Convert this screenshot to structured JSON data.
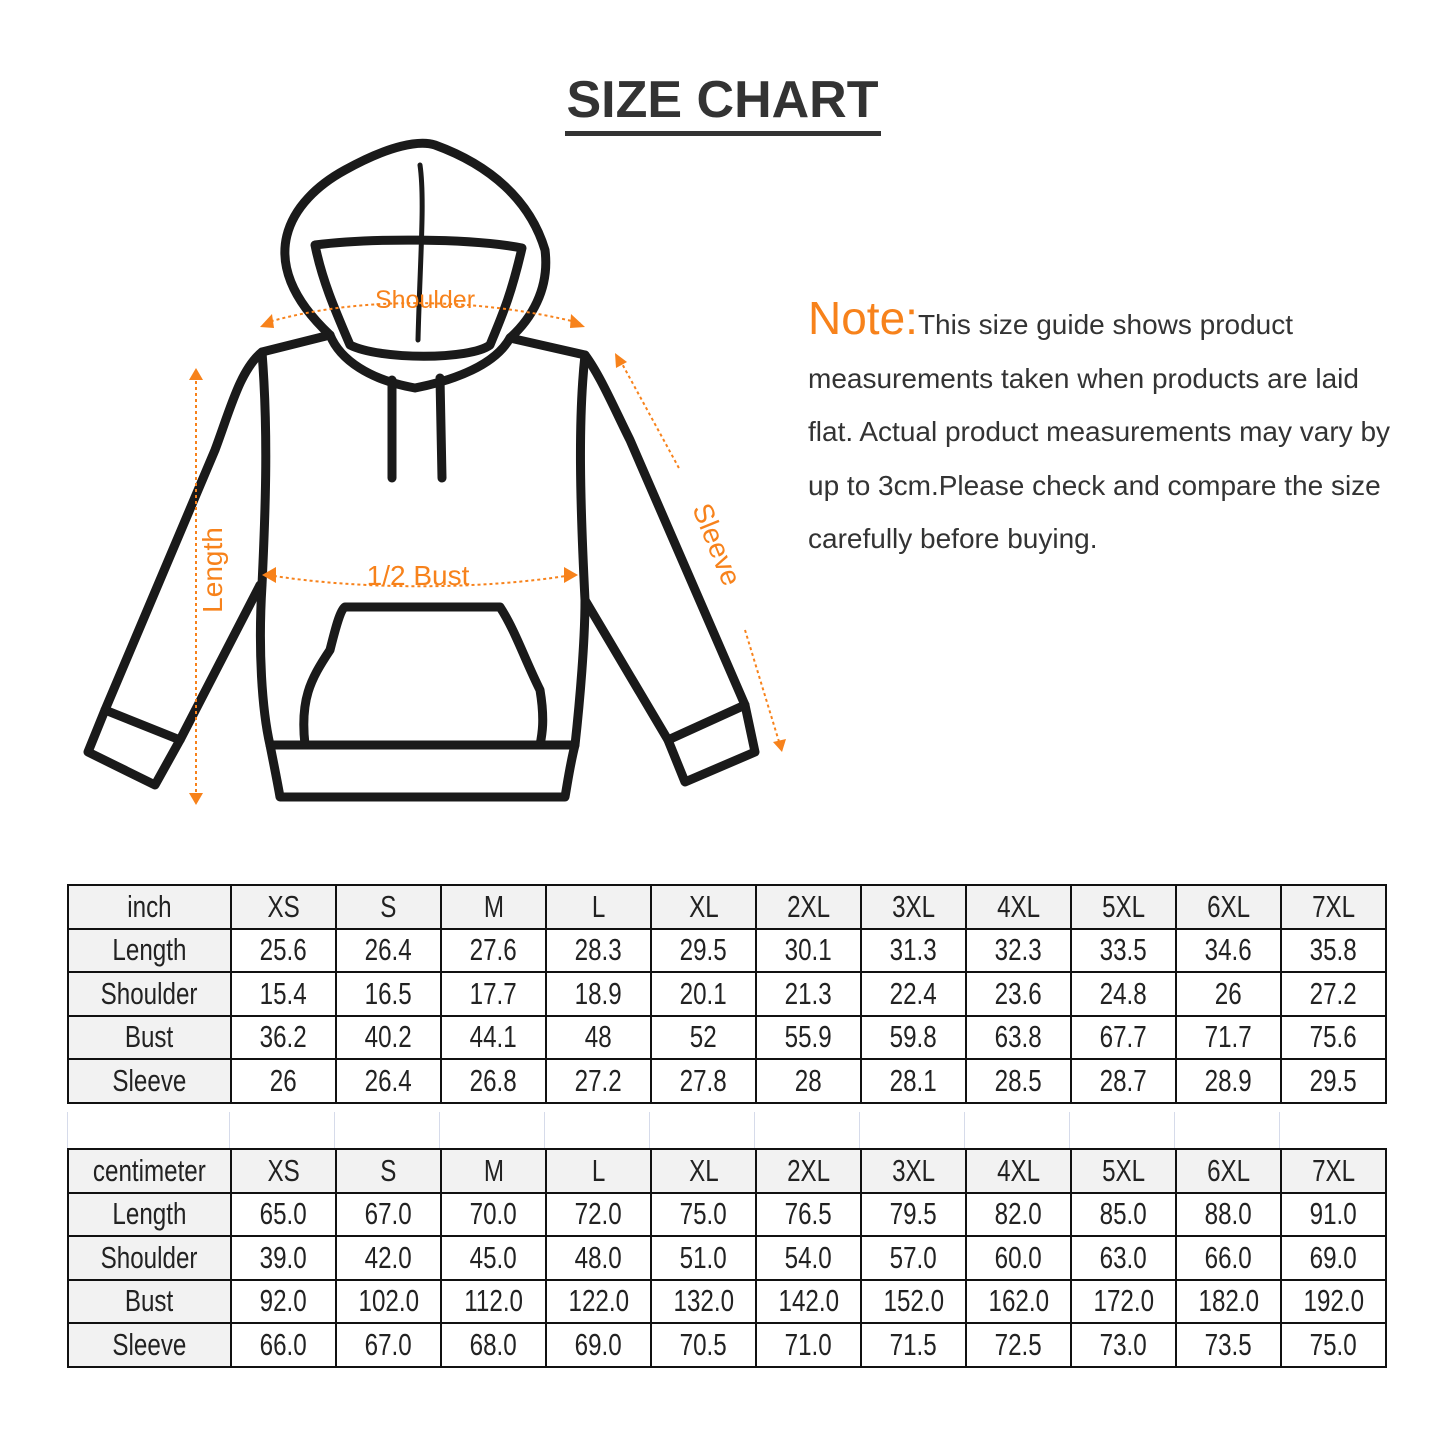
{
  "title": "SIZE CHART",
  "labels": {
    "shoulder": "Shoulder",
    "length": "Length",
    "bust": "1/2 Bust",
    "sleeve": "Sleeve"
  },
  "note": {
    "label": "Note:",
    "text": "This size guide shows product measurements taken when products are laid flat. Actual product measurements may vary by up to 3cm.Please check and compare the size carefully before buying."
  },
  "colors": {
    "accent": "#f7821b",
    "outline": "#1a1a1a",
    "header_bg": "#f2f2f2"
  },
  "sizes": [
    "XS",
    "S",
    "M",
    "L",
    "XL",
    "2XL",
    "3XL",
    "4XL",
    "5XL",
    "6XL",
    "7XL"
  ],
  "inch": {
    "unit": "inch",
    "rows": [
      {
        "label": "Length",
        "values": [
          "25.6",
          "26.4",
          "27.6",
          "28.3",
          "29.5",
          "30.1",
          "31.3",
          "32.3",
          "33.5",
          "34.6",
          "35.8"
        ]
      },
      {
        "label": "Shoulder",
        "values": [
          "15.4",
          "16.5",
          "17.7",
          "18.9",
          "20.1",
          "21.3",
          "22.4",
          "23.6",
          "24.8",
          "26",
          "27.2"
        ]
      },
      {
        "label": "Bust",
        "values": [
          "36.2",
          "40.2",
          "44.1",
          "48",
          "52",
          "55.9",
          "59.8",
          "63.8",
          "67.7",
          "71.7",
          "75.6"
        ]
      },
      {
        "label": "Sleeve",
        "values": [
          "26",
          "26.4",
          "26.8",
          "27.2",
          "27.8",
          "28",
          "28.1",
          "28.5",
          "28.7",
          "28.9",
          "29.5"
        ]
      }
    ]
  },
  "cm": {
    "unit": "centimeter",
    "rows": [
      {
        "label": "Length",
        "values": [
          "65.0",
          "67.0",
          "70.0",
          "72.0",
          "75.0",
          "76.5",
          "79.5",
          "82.0",
          "85.0",
          "88.0",
          "91.0"
        ]
      },
      {
        "label": "Shoulder",
        "values": [
          "39.0",
          "42.0",
          "45.0",
          "48.0",
          "51.0",
          "54.0",
          "57.0",
          "60.0",
          "63.0",
          "66.0",
          "69.0"
        ]
      },
      {
        "label": "Bust",
        "values": [
          "92.0",
          "102.0",
          "112.0",
          "122.0",
          "132.0",
          "142.0",
          "152.0",
          "162.0",
          "172.0",
          "182.0",
          "192.0"
        ]
      },
      {
        "label": "Sleeve",
        "values": [
          "66.0",
          "67.0",
          "68.0",
          "69.0",
          "70.5",
          "71.0",
          "71.5",
          "72.5",
          "73.0",
          "73.5",
          "75.0"
        ]
      }
    ]
  }
}
